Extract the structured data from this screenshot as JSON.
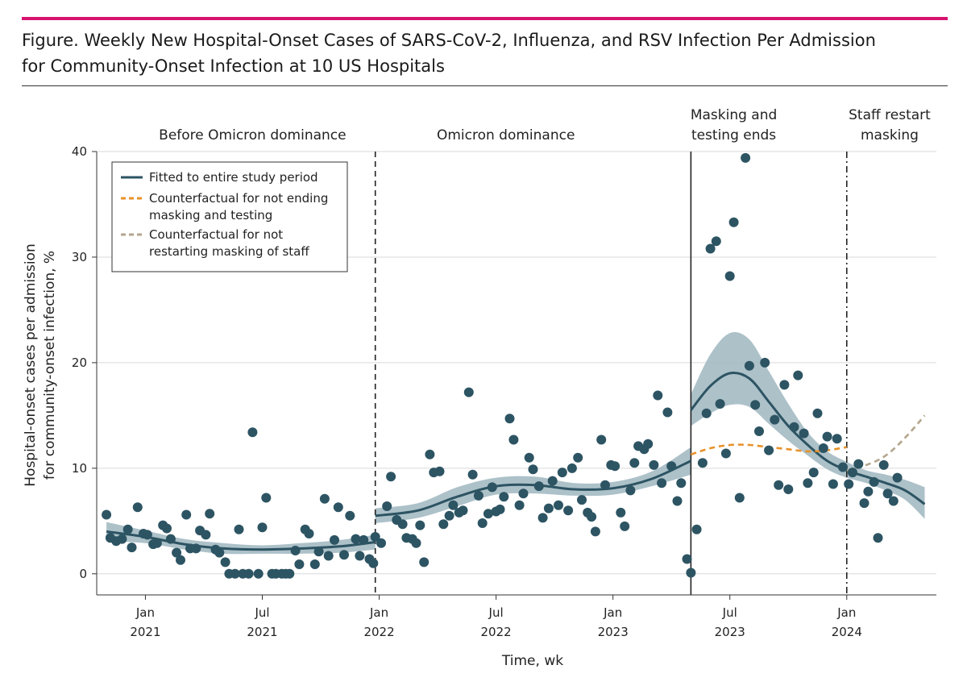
{
  "figure": {
    "title_line1": "Figure. Weekly New Hospital-Onset Cases of SARS-CoV-2, Influenza, and RSV Infection Per Admission",
    "title_line2": "for Community-Onset Infection at 10 US Hospitals"
  },
  "colors": {
    "accent": "#d6136e",
    "fitted": "#2d5463",
    "band": "#9fb6bf",
    "point": "#2d5463",
    "counterfactual_masking": "#e8922a",
    "counterfactual_staff": "#b3a58c",
    "grid": "#d9d9d9"
  },
  "chart_data": {
    "type": "scatter",
    "title": "Weekly New Hospital-Onset Cases of SARS-CoV-2, Influenza, and RSV Infection Per Admission for Community-Onset Infection at 10 US Hospitals",
    "xlabel": "Time, wk",
    "ylabel_line1": "Hospital-onset cases per admission",
    "ylabel_line2": "for community-onset infection, %",
    "x_units": "months since Jan 2020",
    "xlim": [
      9.5,
      52.6
    ],
    "ylim": [
      -2,
      40
    ],
    "yticks": [
      0,
      10,
      20,
      30,
      40
    ],
    "ytick_labels": [
      "0",
      "10",
      "20",
      "30",
      "40"
    ],
    "xticks": [
      {
        "x": 12,
        "month": "Jan",
        "year": "2021"
      },
      {
        "x": 18,
        "month": "Jul",
        "year": "2021"
      },
      {
        "x": 24,
        "month": "Jan",
        "year": "2022"
      },
      {
        "x": 30,
        "month": "Jul",
        "year": "2022"
      },
      {
        "x": 36,
        "month": "Jan",
        "year": "2023"
      },
      {
        "x": 42,
        "month": "Jul",
        "year": "2023"
      },
      {
        "x": 48,
        "month": "Jan",
        "year": "2024"
      }
    ],
    "grid": "horizontal",
    "periods": [
      {
        "label_line1": "Before Omicron dominance",
        "label_line2": "",
        "x_center": 17.5
      },
      {
        "label_line1": "Omicron dominance",
        "label_line2": "",
        "x_center": 30.5
      },
      {
        "label_line1": "Masking and",
        "label_line2": "testing ends",
        "x_center": 42.2
      },
      {
        "label_line1": "Staff restart",
        "label_line2": "masking",
        "x_center": 50.2
      }
    ],
    "vlines": [
      {
        "x": 23.8,
        "style": "dashed"
      },
      {
        "x": 40.0,
        "style": "solid"
      },
      {
        "x": 48.0,
        "style": "dashdot"
      }
    ],
    "legend": {
      "placement": "top-left",
      "entries": [
        {
          "label_line1": "Fitted to entire study period",
          "label_line2": "",
          "style": "solid",
          "color_key": "fitted"
        },
        {
          "label_line1": "Counterfactual for not ending",
          "label_line2": "masking and testing",
          "style": "dashed",
          "color_key": "counterfactual_masking"
        },
        {
          "label_line1": "Counterfactual for not",
          "label_line2": "restarting masking of staff",
          "style": "dashed",
          "color_key": "counterfactual_staff"
        }
      ]
    },
    "fitted_segments": [
      {
        "name": "Before Omicron",
        "x": [
          10.0,
          12.0,
          14.0,
          16.0,
          18.0,
          20.0,
          22.0,
          23.8
        ],
        "y": [
          4.0,
          3.5,
          2.8,
          2.4,
          2.3,
          2.4,
          2.6,
          3.0
        ],
        "lower": [
          3.1,
          2.9,
          2.3,
          1.9,
          1.9,
          1.9,
          2.0,
          2.3
        ],
        "upper": [
          4.9,
          4.1,
          3.3,
          2.9,
          2.7,
          2.9,
          3.2,
          3.7
        ]
      },
      {
        "name": "Omicron dominance",
        "x": [
          23.8,
          26.0,
          28.0,
          30.0,
          32.0,
          34.0,
          36.0,
          38.0,
          40.0
        ],
        "y": [
          5.5,
          6.0,
          7.3,
          8.3,
          8.4,
          8.0,
          8.1,
          9.0,
          10.7
        ],
        "lower": [
          4.8,
          5.3,
          6.4,
          7.5,
          7.6,
          7.4,
          7.5,
          8.3,
          9.4
        ],
        "upper": [
          6.2,
          6.7,
          8.2,
          9.1,
          9.2,
          8.6,
          8.7,
          9.7,
          12.0
        ]
      },
      {
        "name": "Post masking end",
        "x": [
          40.0,
          41.0,
          42.0,
          43.0,
          44.0,
          45.0,
          46.0,
          47.0,
          48.0,
          49.0,
          50.0,
          51.0,
          52.0
        ],
        "y": [
          15.5,
          17.8,
          19.0,
          18.5,
          16.3,
          14.0,
          12.2,
          10.7,
          9.8,
          9.2,
          8.6,
          7.9,
          6.6
        ],
        "lower": [
          14.0,
          15.2,
          16.0,
          15.8,
          14.2,
          12.6,
          11.2,
          9.9,
          9.1,
          8.6,
          7.9,
          7.0,
          5.2
        ],
        "upper": [
          17.0,
          20.8,
          22.8,
          22.2,
          19.2,
          16.1,
          13.4,
          11.6,
          10.6,
          9.8,
          9.4,
          8.9,
          8.2
        ]
      }
    ],
    "counterfactual_no_end_masking": {
      "x": [
        40.0,
        41.0,
        42.0,
        43.0,
        44.0,
        45.0,
        46.0,
        47.0,
        48.0
      ],
      "y": [
        11.3,
        11.9,
        12.2,
        12.2,
        12.0,
        11.8,
        11.6,
        11.7,
        12.0
      ]
    },
    "counterfactual_no_staff_masking": {
      "x": [
        48.0,
        49.0,
        50.0,
        51.0,
        52.0
      ],
      "y": [
        9.8,
        10.3,
        11.2,
        12.9,
        15.0
      ]
    },
    "points": {
      "x": [
        10.0,
        10.2,
        10.5,
        10.8,
        11.1,
        11.3,
        11.6,
        11.9,
        12.1,
        12.4,
        12.6,
        12.9,
        13.1,
        13.3,
        13.6,
        13.8,
        14.1,
        14.3,
        14.6,
        14.8,
        15.1,
        15.3,
        15.6,
        15.8,
        16.1,
        16.3,
        16.6,
        16.8,
        17.0,
        17.3,
        17.5,
        17.8,
        18.0,
        18.2,
        18.5,
        18.7,
        19.0,
        19.2,
        19.4,
        19.7,
        19.9,
        20.2,
        20.4,
        20.7,
        20.9,
        21.2,
        21.4,
        21.7,
        21.9,
        22.2,
        22.5,
        22.8,
        23.0,
        23.2,
        23.5,
        23.7,
        23.8,
        24.1,
        24.4,
        24.6,
        24.9,
        25.2,
        25.4,
        25.7,
        25.9,
        26.1,
        26.3,
        26.6,
        26.8,
        27.1,
        27.3,
        27.6,
        27.8,
        28.1,
        28.3,
        28.6,
        28.8,
        29.1,
        29.3,
        29.6,
        29.8,
        30.0,
        30.2,
        30.4,
        30.7,
        30.9,
        31.2,
        31.4,
        31.7,
        31.9,
        32.2,
        32.4,
        32.7,
        32.9,
        33.2,
        33.4,
        33.7,
        33.9,
        34.2,
        34.4,
        34.7,
        34.9,
        35.1,
        35.4,
        35.6,
        35.9,
        36.1,
        36.4,
        36.6,
        36.9,
        37.1,
        37.3,
        37.6,
        37.8,
        38.1,
        38.3,
        38.5,
        38.8,
        39.0,
        39.3,
        39.5,
        39.8,
        40.0,
        40.3,
        40.6,
        40.8,
        41.0,
        41.3,
        41.5,
        41.8,
        42.0,
        42.2,
        42.5,
        42.8,
        43.0,
        43.3,
        43.5,
        43.8,
        44.0,
        44.3,
        44.5,
        44.8,
        45.0,
        45.3,
        45.5,
        45.8,
        46.0,
        46.3,
        46.5,
        46.8,
        47.0,
        47.3,
        47.5,
        47.8,
        48.1,
        48.3,
        48.6,
        48.9,
        49.1,
        49.4,
        49.6,
        49.9,
        50.1,
        50.4,
        50.6
      ],
      "y": [
        5.6,
        3.4,
        3.1,
        3.3,
        4.2,
        2.5,
        6.3,
        3.8,
        3.7,
        2.8,
        2.9,
        4.6,
        4.3,
        3.3,
        2.0,
        1.3,
        5.6,
        2.4,
        2.4,
        4.1,
        3.7,
        5.7,
        2.3,
        2.0,
        1.1,
        0.0,
        0.0,
        4.2,
        0.0,
        0.0,
        13.4,
        0.0,
        4.4,
        7.2,
        0.0,
        0.0,
        0.0,
        0.0,
        0.0,
        2.2,
        0.9,
        4.2,
        3.8,
        0.9,
        2.1,
        7.1,
        1.7,
        3.2,
        6.3,
        1.8,
        5.5,
        3.3,
        1.7,
        3.2,
        1.4,
        1.0,
        3.5,
        2.9,
        6.4,
        9.2,
        5.1,
        4.7,
        3.4,
        3.3,
        2.9,
        4.6,
        1.1,
        11.3,
        9.6,
        9.7,
        4.7,
        5.5,
        6.5,
        5.8,
        6.0,
        17.2,
        9.4,
        7.4,
        4.8,
        5.7,
        8.2,
        5.9,
        6.1,
        7.3,
        14.7,
        12.7,
        6.5,
        7.6,
        11.0,
        9.9,
        8.3,
        5.3,
        6.2,
        8.8,
        6.5,
        9.6,
        6.0,
        10.0,
        11.0,
        7.0,
        5.8,
        5.4,
        4.0,
        12.7,
        8.4,
        10.3,
        10.2,
        5.8,
        4.5,
        7.9,
        10.5,
        12.1,
        11.8,
        12.3,
        10.3,
        16.9,
        8.6,
        15.3,
        10.2,
        6.9,
        8.6,
        1.4,
        0.1,
        4.2,
        10.5,
        15.2,
        30.8,
        31.5,
        16.1,
        11.4,
        28.2,
        33.3,
        7.2,
        39.4,
        19.7,
        16.0,
        13.5,
        20.0,
        11.7,
        14.6,
        8.4,
        17.9,
        8.0,
        13.9,
        18.8,
        13.3,
        8.6,
        9.6,
        15.2,
        11.9,
        13.0,
        8.5,
        12.8,
        10.1,
        8.5,
        9.6,
        10.4,
        6.7,
        7.8,
        8.7,
        3.4,
        10.3,
        7.6,
        6.9,
        9.1
      ]
    }
  }
}
